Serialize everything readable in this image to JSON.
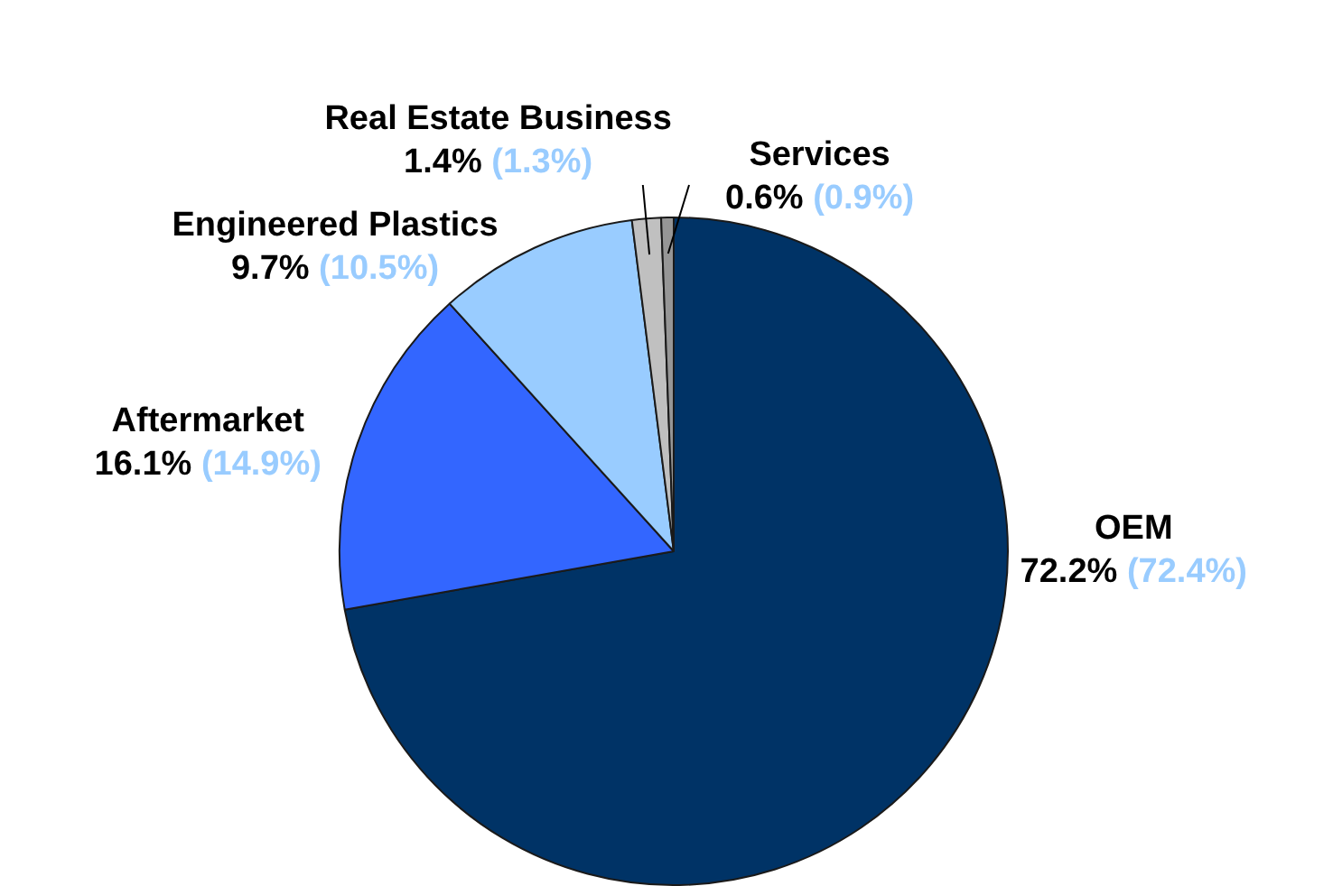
{
  "chart_data": {
    "type": "pie",
    "categories": [
      "OEM",
      "Aftermarket",
      "Engineered Plastics",
      "Real Estate Business",
      "Services"
    ],
    "values": [
      72.2,
      16.1,
      9.7,
      1.4,
      0.6
    ],
    "colors": [
      "#003366",
      "#3366ff",
      "#99ccff",
      "#c0c0c0",
      "#969696"
    ],
    "value_labels": [
      "72.2%",
      "16.1%",
      "9.7%",
      "1.4%",
      "0.6%"
    ],
    "annotations": [
      {
        "text": "(72.4%)",
        "x": "OEM"
      },
      {
        "text": "(14.9%)",
        "x": "Aftermarket"
      },
      {
        "text": "(10.5%)",
        "x": "Engineered Plastics"
      },
      {
        "text": "(1.3%)",
        "x": "Real Estate Business"
      },
      {
        "text": "(0.9%)",
        "x": "Services"
      }
    ],
    "legend": false
  }
}
